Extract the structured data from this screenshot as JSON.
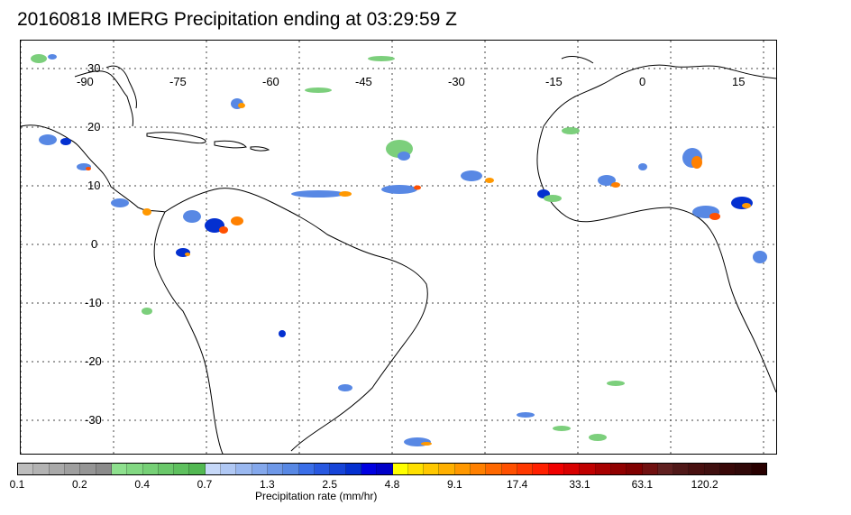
{
  "title": "20160818 IMERG Precipitation ending at 03:29:59 Z",
  "map": {
    "lon_labels": [
      "-90",
      "-75",
      "-60",
      "-45",
      "-30",
      "-15",
      "0",
      "15"
    ],
    "lat_labels": [
      "30",
      "20",
      "10",
      "0",
      "-10",
      "-20",
      "-30"
    ]
  },
  "colorbar": {
    "label": "Precipitation rate (mm/hr)",
    "ticks": [
      "0.1",
      "0.2",
      "0.4",
      "0.7",
      "1.3",
      "2.5",
      "4.8",
      "9.1",
      "17.4",
      "33.1",
      "63.1",
      "120.2"
    ],
    "colors": [
      "#bdbdbd",
      "#b3b3b3",
      "#a9a9a9",
      "#9f9f9f",
      "#959595",
      "#8b8b8b",
      "#8ee08e",
      "#82d882",
      "#76d076",
      "#6ac86a",
      "#5ec05e",
      "#52b852",
      "#c6d8f8",
      "#b0c8f4",
      "#9ab8f0",
      "#84a8ec",
      "#6e98e8",
      "#5888e4",
      "#3a6ee8",
      "#2858e0",
      "#1644d8",
      "#0430d0",
      "#0000e0",
      "#0000c8",
      "#ffff00",
      "#ffe000",
      "#ffc800",
      "#ffb000",
      "#ff9800",
      "#ff8000",
      "#ff6800",
      "#ff5000",
      "#ff3800",
      "#ff2000",
      "#f00000",
      "#d80000",
      "#c00000",
      "#a80000",
      "#900000",
      "#800000",
      "#701010",
      "#602020",
      "#501818",
      "#481010",
      "#401010",
      "#380808",
      "#300808",
      "#280000"
    ]
  }
}
